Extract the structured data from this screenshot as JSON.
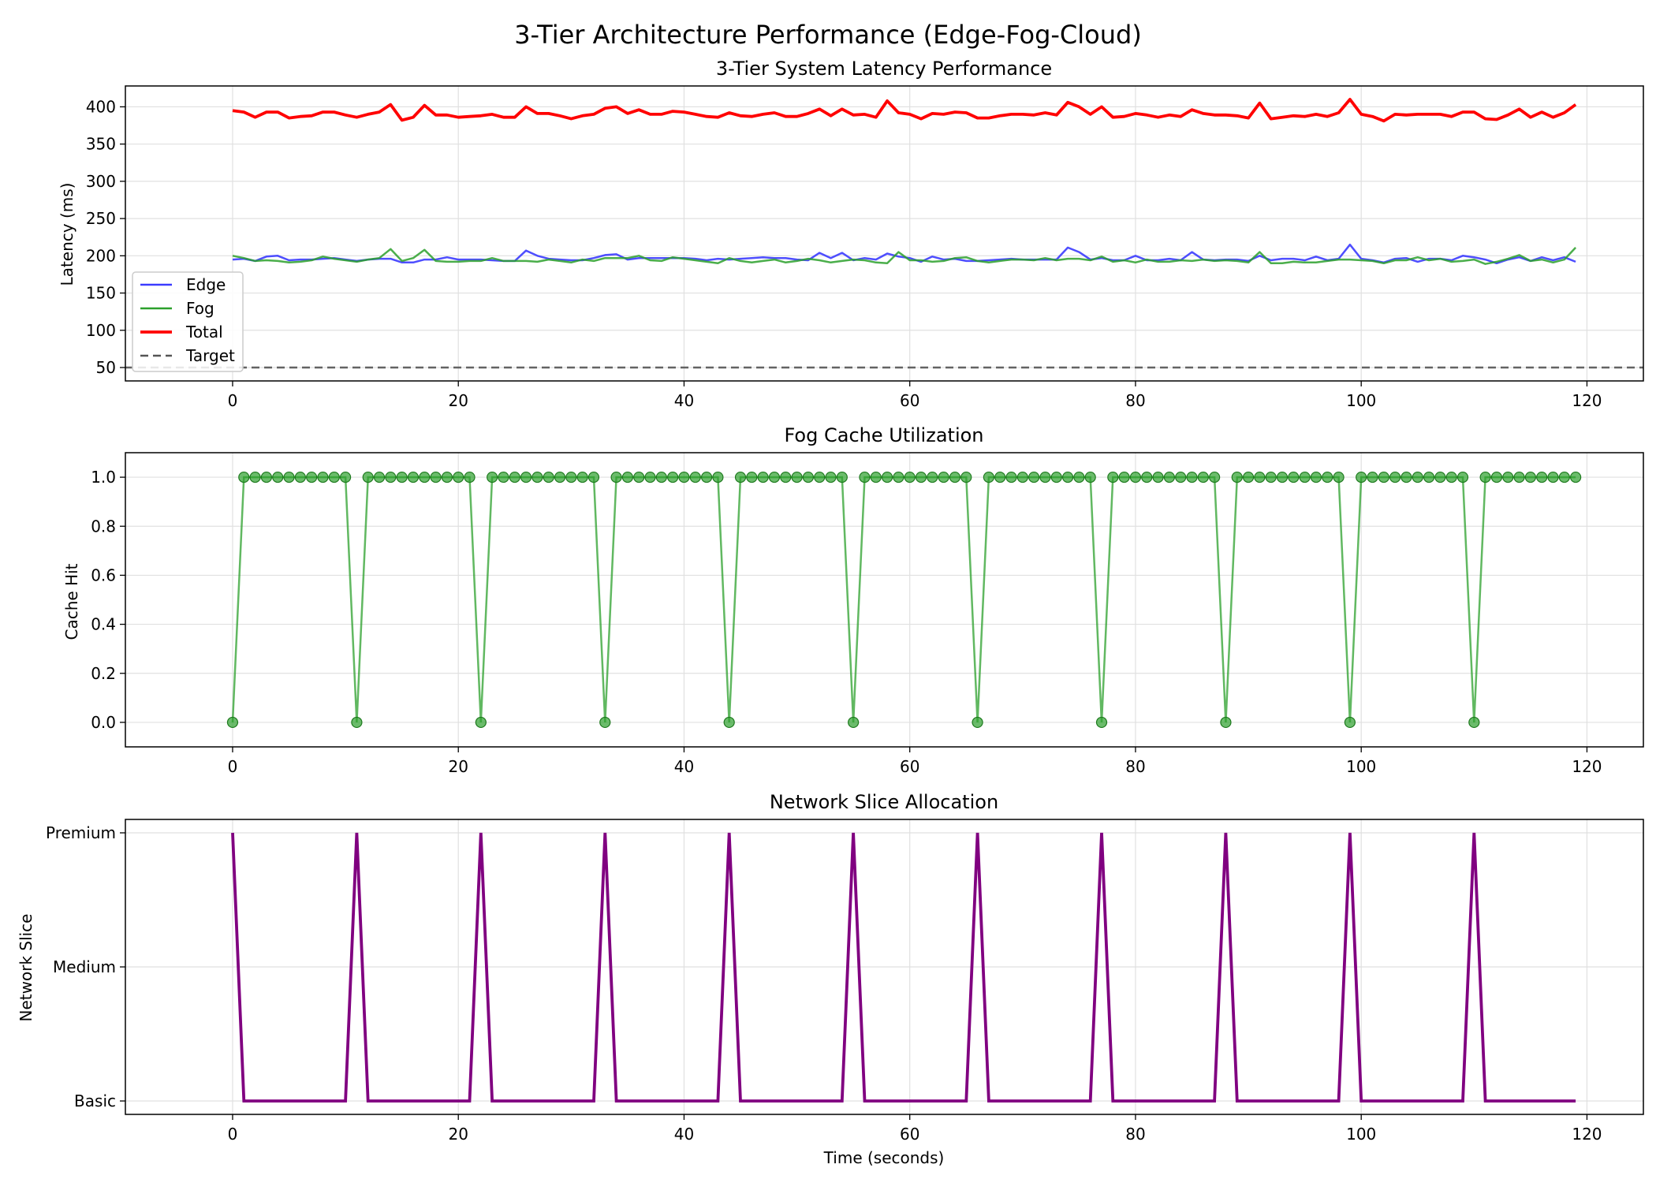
{
  "figure": {
    "title": "3-Tier Architecture Performance (Edge-Fog-Cloud)"
  },
  "colors": {
    "edge": "#3b3bff",
    "fog": "#2ca02c",
    "total": "#ff0000",
    "target": "#555555",
    "cache": "#2ca02c",
    "slice": "#800080",
    "grid": "#e0e0e0"
  },
  "chart_data": [
    {
      "type": "line",
      "title": "3-Tier System Latency Performance",
      "xlabel": "",
      "ylabel": "Latency (ms)",
      "xlim": [
        -9.5,
        125
      ],
      "ylim": [
        32,
        428
      ],
      "xticks": [
        0,
        20,
        40,
        60,
        80,
        100,
        120
      ],
      "yticks": [
        50,
        100,
        150,
        200,
        250,
        300,
        350,
        400
      ],
      "grid": true,
      "legend_position": "lower-left",
      "x": [
        0,
        1,
        2,
        3,
        4,
        5,
        6,
        7,
        8,
        9,
        10,
        11,
        12,
        13,
        14,
        15,
        16,
        17,
        18,
        19,
        20,
        21,
        22,
        23,
        24,
        25,
        26,
        27,
        28,
        29,
        30,
        31,
        32,
        33,
        34,
        35,
        36,
        37,
        38,
        39,
        40,
        41,
        42,
        43,
        44,
        45,
        46,
        47,
        48,
        49,
        50,
        51,
        52,
        53,
        54,
        55,
        56,
        57,
        58,
        59,
        60,
        61,
        62,
        63,
        64,
        65,
        66,
        67,
        68,
        69,
        70,
        71,
        72,
        73,
        74,
        75,
        76,
        77,
        78,
        79,
        80,
        81,
        82,
        83,
        84,
        85,
        86,
        87,
        88,
        89,
        90,
        91,
        92,
        93,
        94,
        95,
        96,
        97,
        98,
        99,
        100,
        101,
        102,
        103,
        104,
        105,
        106,
        107,
        108,
        109,
        110,
        111,
        112,
        113,
        114,
        115,
        116,
        117,
        118,
        119
      ],
      "series": [
        {
          "name": "Edge",
          "values": [
            195,
            196,
            193,
            199,
            200,
            194,
            195,
            195,
            196,
            197,
            195,
            193,
            195,
            196,
            196,
            191,
            191,
            195,
            195,
            198,
            195,
            195,
            195,
            194,
            193,
            193,
            207,
            200,
            196,
            195,
            194,
            194,
            197,
            201,
            202,
            195,
            197,
            197,
            197,
            197,
            197,
            196,
            194,
            196,
            195,
            196,
            197,
            198,
            197,
            197,
            195,
            194,
            204,
            197,
            204,
            194,
            197,
            195,
            203,
            199,
            197,
            192,
            199,
            195,
            196,
            193,
            193,
            194,
            195,
            196,
            195,
            195,
            195,
            195,
            211,
            205,
            195,
            197,
            194,
            194,
            200,
            194,
            194,
            196,
            194,
            205,
            195,
            194,
            195,
            195,
            193,
            200,
            194,
            196,
            196,
            194,
            199,
            194,
            196,
            215,
            196,
            194,
            191,
            196,
            197,
            192,
            196,
            196,
            194,
            200,
            198,
            195,
            190,
            195,
            198,
            193,
            198,
            194,
            198,
            192
          ]
        },
        {
          "name": "Fog",
          "values": [
            200,
            197,
            193,
            194,
            193,
            191,
            192,
            194,
            199,
            196,
            194,
            192,
            195,
            197,
            209,
            193,
            197,
            208,
            193,
            192,
            192,
            193,
            193,
            197,
            193,
            193,
            193,
            192,
            195,
            193,
            191,
            195,
            193,
            197,
            197,
            197,
            200,
            194,
            193,
            198,
            196,
            194,
            192,
            190,
            197,
            193,
            191,
            193,
            195,
            191,
            193,
            196,
            194,
            191,
            193,
            195,
            194,
            191,
            190,
            205,
            194,
            194,
            192,
            193,
            197,
            198,
            193,
            191,
            193,
            195,
            195,
            194,
            197,
            194,
            196,
            196,
            194,
            199,
            192,
            194,
            191,
            195,
            192,
            192,
            194,
            193,
            195,
            193,
            194,
            193,
            191,
            205,
            190,
            190,
            192,
            191,
            191,
            193,
            195,
            195,
            194,
            193,
            190,
            194,
            194,
            198,
            194,
            196,
            192,
            193,
            195,
            189,
            192,
            196,
            201,
            193,
            195,
            191,
            195,
            211
          ]
        },
        {
          "name": "Total",
          "values": [
            395,
            393,
            386,
            393,
            393,
            385,
            387,
            388,
            393,
            393,
            389,
            386,
            390,
            393,
            403,
            382,
            386,
            402,
            389,
            389,
            386,
            387,
            388,
            390,
            386,
            386,
            400,
            391,
            391,
            388,
            384,
            388,
            390,
            398,
            400,
            391,
            396,
            390,
            390,
            394,
            393,
            390,
            387,
            386,
            392,
            388,
            387,
            390,
            392,
            387,
            387,
            391,
            397,
            388,
            397,
            389,
            390,
            386,
            408,
            392,
            390,
            384,
            391,
            390,
            393,
            392,
            385,
            385,
            388,
            390,
            390,
            389,
            392,
            389,
            406,
            400,
            390,
            400,
            386,
            387,
            391,
            389,
            386,
            389,
            387,
            396,
            391,
            389,
            389,
            388,
            385,
            405,
            384,
            386,
            388,
            387,
            390,
            387,
            392,
            410,
            390,
            387,
            381,
            390,
            389,
            390,
            390,
            390,
            387,
            393,
            393,
            384,
            383,
            389,
            397,
            386,
            393,
            386,
            392,
            403
          ]
        },
        {
          "name": "Target",
          "values": [
            50,
            50
          ],
          "x": [
            -9.5,
            125
          ],
          "style": "dashed"
        }
      ]
    },
    {
      "type": "line",
      "title": "Fog Cache Utilization",
      "xlabel": "",
      "ylabel": "Cache Hit",
      "xlim": [
        -9.5,
        125
      ],
      "ylim": [
        -0.1,
        1.1
      ],
      "xticks": [
        0,
        20,
        40,
        60,
        80,
        100,
        120
      ],
      "yticks": [
        "0.0",
        "0.2",
        "0.4",
        "0.6",
        "0.8",
        "1.0"
      ],
      "grid": true,
      "miss_every": 11,
      "count": 120,
      "series": [
        {
          "name": "",
          "markers": true
        }
      ]
    },
    {
      "type": "line",
      "title": "Network Slice Allocation",
      "xlabel": "Time (seconds)",
      "ylabel": "Network Slice",
      "xlim": [
        -9.5,
        125
      ],
      "ylim": [
        -0.1,
        2.1
      ],
      "xticks": [
        0,
        20,
        40,
        60,
        80,
        100,
        120
      ],
      "ycategories": [
        "Basic",
        "Medium",
        "Premium"
      ],
      "grid": true,
      "premium_every": 11,
      "count": 120,
      "series": [
        {
          "name": ""
        }
      ]
    }
  ]
}
